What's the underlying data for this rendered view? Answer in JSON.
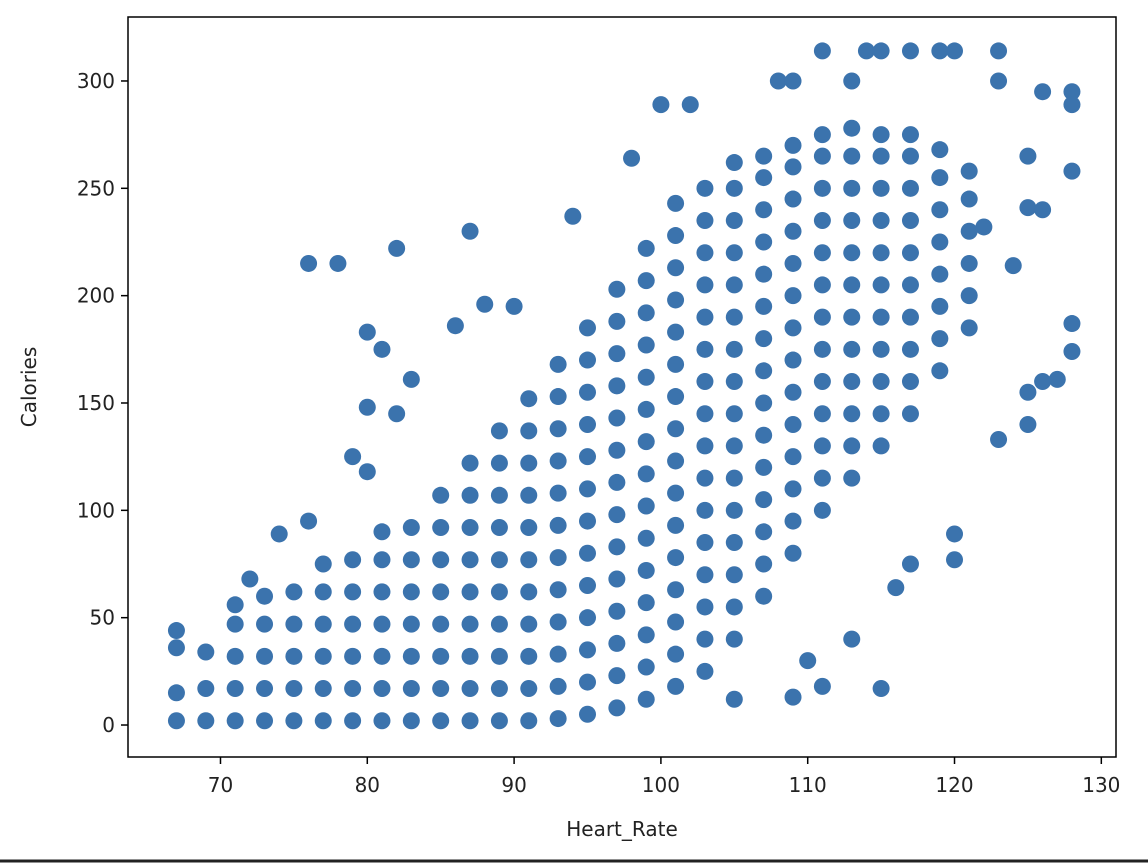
{
  "chart_data": {
    "type": "scatter",
    "xlabel": "Heart_Rate",
    "ylabel": "Calories",
    "color": "#3b73ad",
    "xlim": [
      63.7,
      131.0
    ],
    "ylim": [
      -14.9,
      329.8
    ],
    "xticks": [
      70,
      80,
      90,
      100,
      110,
      120,
      130
    ],
    "yticks": [
      0,
      50,
      100,
      150,
      200,
      250,
      300
    ],
    "x": [
      67,
      67,
      69,
      69,
      69,
      71,
      71,
      71,
      71,
      73,
      73,
      73,
      73,
      73,
      75,
      75,
      75,
      75,
      75,
      77,
      77,
      77,
      77,
      77,
      77,
      79,
      79,
      79,
      79,
      79,
      79,
      81,
      81,
      81,
      81,
      81,
      81,
      81,
      83,
      83,
      83,
      83,
      83,
      83,
      83,
      85,
      85,
      85,
      85,
      85,
      85,
      85,
      85,
      87,
      87,
      87,
      87,
      87,
      87,
      87,
      87,
      87,
      89,
      89,
      89,
      89,
      89,
      89,
      89,
      89,
      89,
      89,
      91,
      91,
      91,
      91,
      91,
      91,
      91,
      91,
      91,
      91,
      91,
      93,
      93,
      93,
      93,
      93,
      93,
      93,
      93,
      93,
      93,
      93,
      93,
      95,
      95,
      95,
      95,
      95,
      95,
      95,
      95,
      95,
      95,
      95,
      95,
      95,
      97,
      97,
      97,
      97,
      97,
      97,
      97,
      97,
      97,
      97,
      97,
      97,
      97,
      97,
      99,
      99,
      99,
      99,
      99,
      99,
      99,
      99,
      99,
      99,
      99,
      99,
      99,
      99,
      99,
      101,
      101,
      101,
      101,
      101,
      101,
      101,
      101,
      101,
      101,
      101,
      101,
      101,
      101,
      101,
      101,
      103,
      103,
      103,
      103,
      103,
      103,
      103,
      103,
      103,
      103,
      103,
      103,
      103,
      103,
      103,
      103,
      105,
      105,
      105,
      105,
      105,
      105,
      105,
      105,
      105,
      105,
      105,
      105,
      105,
      105,
      105,
      105,
      107,
      107,
      107,
      107,
      107,
      107,
      107,
      107,
      107,
      107,
      107,
      107,
      107,
      107,
      107,
      109,
      109,
      109,
      109,
      109,
      109,
      109,
      109,
      109,
      109,
      109,
      109,
      109,
      109,
      111,
      111,
      111,
      111,
      111,
      111,
      111,
      111,
      111,
      111,
      111,
      111,
      111,
      113,
      113,
      113,
      113,
      113,
      113,
      113,
      113,
      113,
      113,
      113,
      113,
      115,
      115,
      115,
      115,
      115,
      115,
      115,
      115,
      115,
      115,
      115,
      117,
      117,
      117,
      117,
      117,
      117,
      117,
      117,
      117,
      117,
      119,
      119,
      119,
      119,
      119,
      119,
      119,
      119,
      121,
      121,
      121,
      121,
      121,
      121,
      67,
      67,
      76,
      78,
      82,
      87,
      100,
      102,
      111,
      114,
      115,
      117,
      119,
      120,
      123,
      108,
      109,
      113,
      123,
      126,
      128,
      128,
      128,
      128,
      128,
      127,
      126,
      125,
      125,
      123,
      120,
      120,
      117,
      116,
      115,
      113,
      109,
      105,
      110,
      111,
      94,
      98,
      80,
      81,
      82,
      80,
      83,
      79,
      80,
      76,
      74,
      72,
      71,
      86,
      88,
      90,
      125,
      125,
      126,
      122,
      124
    ],
    "values": [
      2,
      15,
      2,
      17,
      34,
      2,
      17,
      32,
      47,
      2,
      17,
      32,
      47,
      60,
      2,
      17,
      32,
      47,
      62,
      2,
      17,
      32,
      47,
      62,
      75,
      2,
      17,
      32,
      47,
      62,
      77,
      2,
      17,
      32,
      47,
      62,
      77,
      90,
      2,
      17,
      32,
      47,
      62,
      77,
      92,
      2,
      17,
      32,
      47,
      62,
      77,
      92,
      107,
      2,
      17,
      32,
      47,
      62,
      77,
      92,
      107,
      122,
      2,
      17,
      32,
      47,
      62,
      77,
      92,
      107,
      122,
      137,
      2,
      17,
      32,
      47,
      62,
      77,
      92,
      107,
      122,
      137,
      152,
      3,
      18,
      33,
      48,
      63,
      78,
      93,
      108,
      123,
      138,
      153,
      168,
      5,
      20,
      35,
      50,
      65,
      80,
      95,
      110,
      125,
      140,
      155,
      170,
      185,
      8,
      23,
      38,
      53,
      68,
      83,
      98,
      113,
      128,
      143,
      158,
      173,
      188,
      203,
      12,
      27,
      42,
      57,
      72,
      87,
      102,
      117,
      132,
      147,
      162,
      177,
      192,
      207,
      222,
      18,
      33,
      48,
      63,
      78,
      93,
      108,
      123,
      138,
      153,
      168,
      183,
      198,
      213,
      228,
      243,
      25,
      40,
      55,
      70,
      85,
      100,
      115,
      130,
      145,
      160,
      175,
      190,
      205,
      220,
      235,
      250,
      40,
      55,
      70,
      85,
      100,
      115,
      130,
      145,
      160,
      175,
      190,
      205,
      220,
      235,
      250,
      262,
      60,
      75,
      90,
      105,
      120,
      135,
      150,
      165,
      180,
      195,
      210,
      225,
      240,
      255,
      265,
      80,
      95,
      110,
      125,
      140,
      155,
      170,
      185,
      200,
      215,
      230,
      245,
      260,
      270,
      100,
      115,
      130,
      145,
      160,
      175,
      190,
      205,
      220,
      235,
      250,
      265,
      275,
      115,
      130,
      145,
      160,
      175,
      190,
      205,
      220,
      235,
      250,
      265,
      278,
      130,
      145,
      160,
      175,
      190,
      205,
      220,
      235,
      250,
      265,
      275,
      145,
      160,
      175,
      190,
      205,
      220,
      235,
      250,
      265,
      275,
      165,
      180,
      195,
      210,
      225,
      240,
      255,
      268,
      185,
      200,
      215,
      230,
      245,
      258,
      44,
      36,
      215,
      215,
      222,
      230,
      289,
      289,
      314,
      314,
      314,
      314,
      314,
      314,
      314,
      300,
      300,
      300,
      300,
      295,
      295,
      289,
      258,
      187,
      174,
      161,
      160,
      155,
      140,
      133,
      89,
      77,
      75,
      64,
      17,
      40,
      13,
      12,
      30,
      18,
      237,
      264,
      183,
      175,
      145,
      148,
      161,
      125,
      118,
      95,
      89,
      68,
      56,
      186,
      196,
      195,
      265,
      241,
      240,
      232,
      214
    ]
  }
}
